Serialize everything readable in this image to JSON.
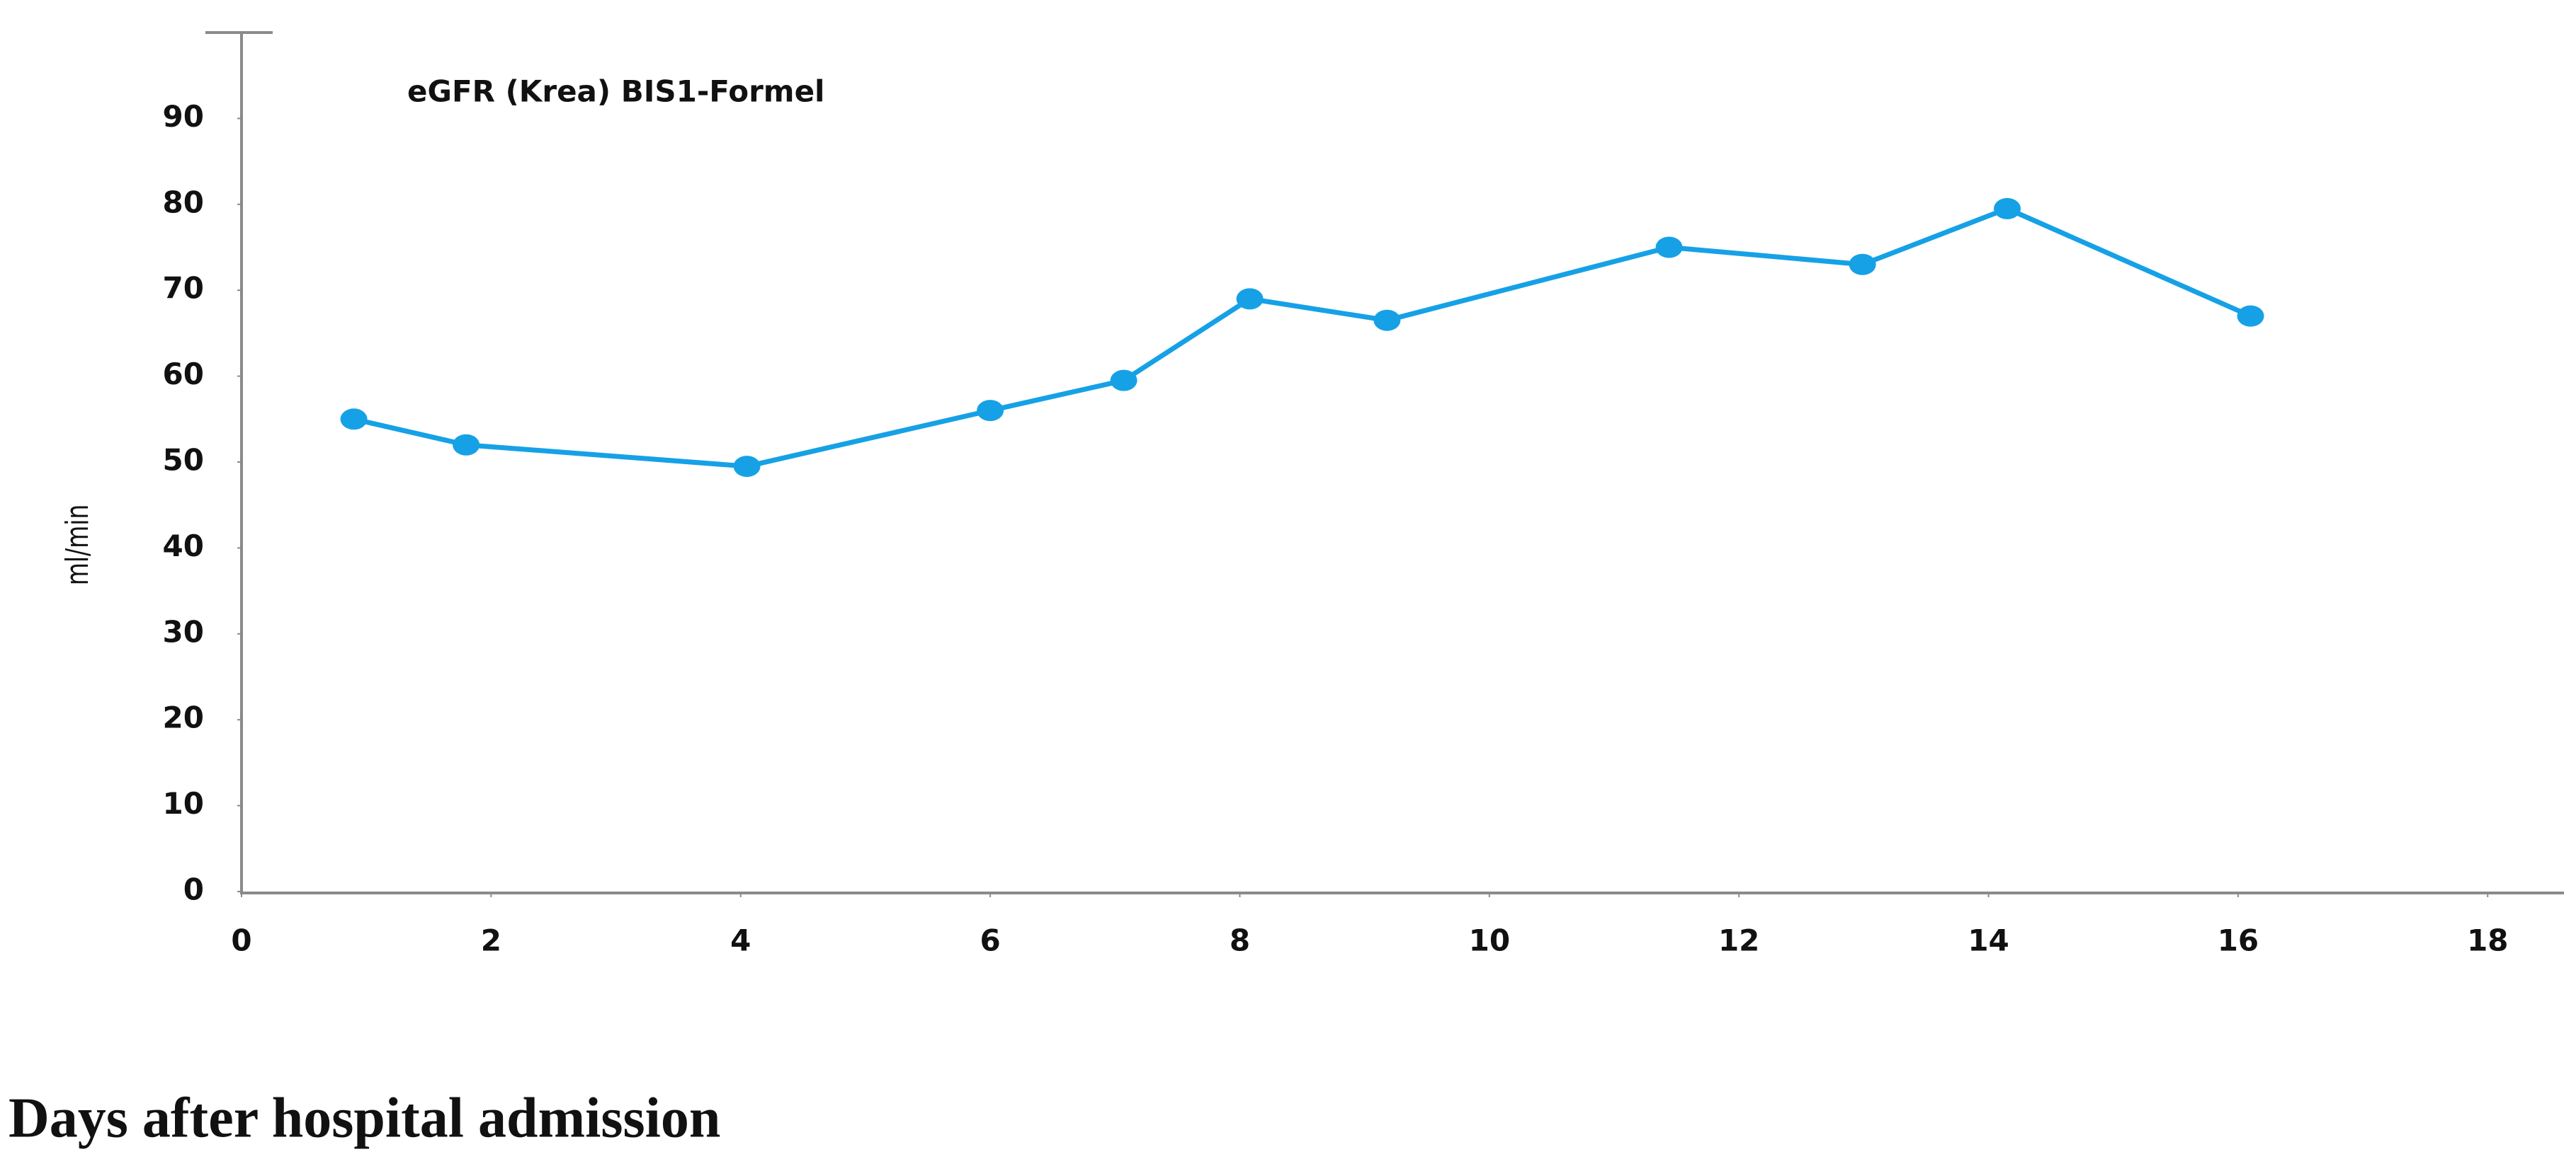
{
  "chart_data": {
    "type": "line",
    "title": "eGFR (Krea) BIS1-Formel",
    "x_label": "Days after hospital admission",
    "y_label": "ml/min",
    "series": [
      {
        "color": "#16a1e6",
        "x": [
          0.9,
          1.8,
          4.05,
          6.0,
          7.07,
          8.08,
          9.18,
          11.44,
          12.99,
          14.15,
          16.1
        ],
        "values": [
          55,
          52,
          49.5,
          56,
          59.5,
          69,
          66.5,
          75,
          73,
          79.5,
          67
        ]
      }
    ],
    "xlim": [
      0,
      18.6
    ],
    "xticks": [
      0,
      2,
      4,
      6,
      8,
      10,
      12,
      14,
      16,
      18
    ],
    "ylim": [
      0,
      100
    ],
    "yticks": [
      0,
      10,
      20,
      30,
      40,
      50,
      60,
      70,
      80,
      90
    ],
    "grid": false
  }
}
